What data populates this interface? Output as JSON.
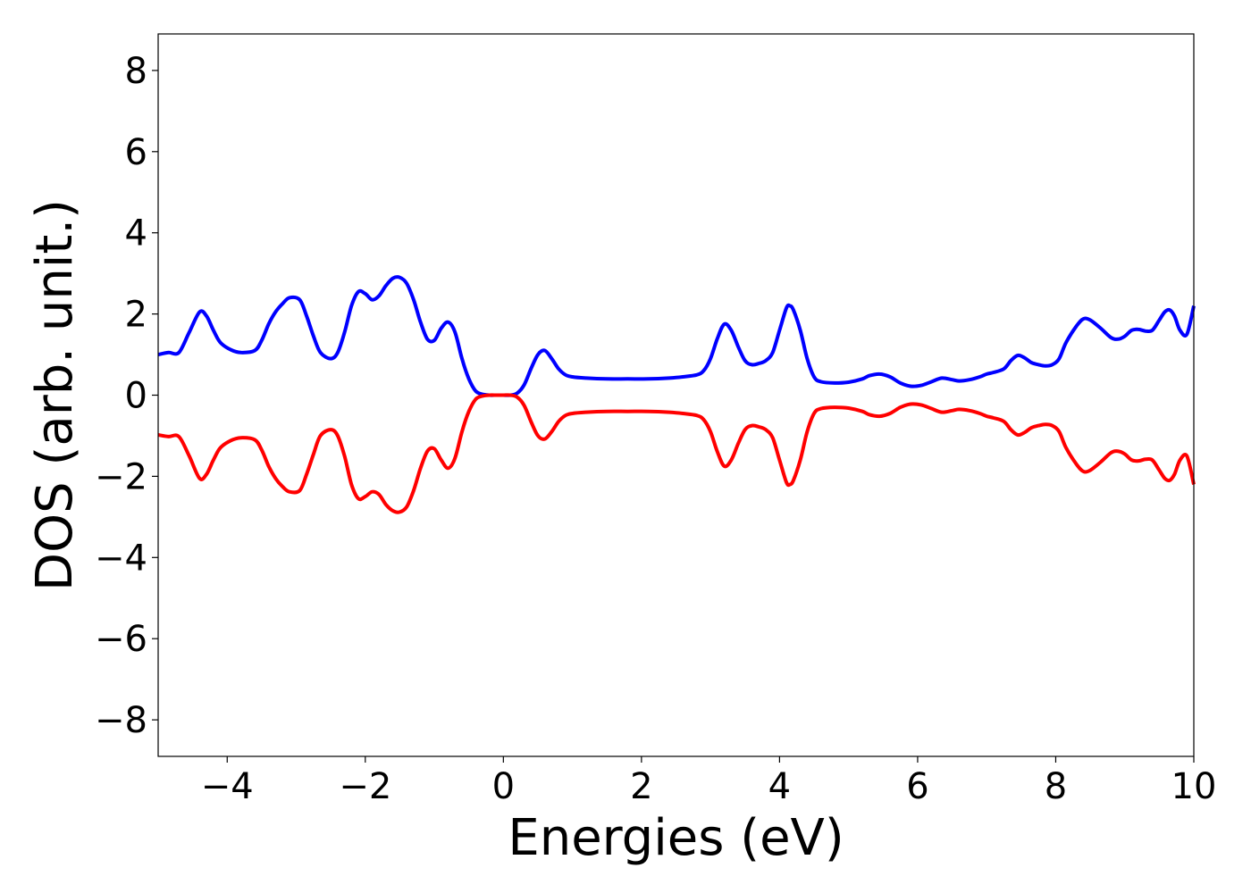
{
  "chart_data": {
    "type": "line",
    "title": "",
    "xlabel": "Energies (eV)",
    "ylabel": "DOS (arb. unit.)",
    "xlim": [
      -5,
      10
    ],
    "ylim": [
      -8.9,
      8.9
    ],
    "xticks": [
      -4,
      -2,
      0,
      2,
      4,
      6,
      8,
      10
    ],
    "xtick_labels": [
      "−4",
      "−2",
      "0",
      "2",
      "4",
      "6",
      "8",
      "10"
    ],
    "yticks": [
      8,
      6,
      4,
      2,
      0,
      -2,
      -4,
      -6,
      -8
    ],
    "ytick_labels": [
      "8",
      "6",
      "4",
      "2",
      "0",
      "−2",
      "−4",
      "−6",
      "−8"
    ],
    "grid": false,
    "series": [
      {
        "color": "#0000ff",
        "x": [
          -5.0,
          -4.85,
          -4.7,
          -4.55,
          -4.4,
          -4.3,
          -4.2,
          -4.1,
          -3.95,
          -3.8,
          -3.6,
          -3.5,
          -3.4,
          -3.3,
          -3.2,
          -3.1,
          -2.95,
          -2.85,
          -2.75,
          -2.65,
          -2.5,
          -2.4,
          -2.3,
          -2.2,
          -2.1,
          -2.0,
          -1.9,
          -1.8,
          -1.7,
          -1.6,
          -1.5,
          -1.4,
          -1.3,
          -1.2,
          -1.1,
          -1.0,
          -0.9,
          -0.8,
          -0.7,
          -0.6,
          -0.5,
          -0.4,
          -0.3,
          -0.2,
          -0.1,
          0.0,
          0.1,
          0.2,
          0.3,
          0.4,
          0.5,
          0.6,
          0.7,
          0.8,
          0.9,
          1.0,
          1.2,
          1.5,
          1.8,
          2.1,
          2.4,
          2.6,
          2.8,
          2.9,
          3.0,
          3.1,
          3.2,
          3.3,
          3.4,
          3.5,
          3.6,
          3.7,
          3.8,
          3.9,
          4.0,
          4.1,
          4.15,
          4.2,
          4.3,
          4.4,
          4.5,
          4.6,
          4.8,
          5.0,
          5.2,
          5.3,
          5.45,
          5.6,
          5.75,
          5.9,
          6.05,
          6.2,
          6.35,
          6.5,
          6.6,
          6.75,
          6.9,
          7.0,
          7.1,
          7.25,
          7.35,
          7.45,
          7.55,
          7.65,
          7.75,
          7.85,
          7.95,
          8.05,
          8.15,
          8.3,
          8.4,
          8.5,
          8.65,
          8.8,
          8.9,
          9.0,
          9.1,
          9.2,
          9.3,
          9.4,
          9.5,
          9.58,
          9.65,
          9.72,
          9.8,
          9.9,
          10.0
        ],
        "y": [
          1.0,
          1.05,
          1.05,
          1.55,
          2.05,
          1.95,
          1.6,
          1.3,
          1.12,
          1.05,
          1.1,
          1.35,
          1.75,
          2.05,
          2.25,
          2.4,
          2.35,
          1.95,
          1.45,
          1.05,
          0.9,
          1.05,
          1.55,
          2.2,
          2.55,
          2.5,
          2.35,
          2.45,
          2.7,
          2.88,
          2.9,
          2.75,
          2.35,
          1.8,
          1.38,
          1.35,
          1.65,
          1.8,
          1.55,
          0.9,
          0.4,
          0.1,
          0.02,
          0.0,
          0.0,
          0.0,
          0.0,
          0.05,
          0.25,
          0.65,
          1.0,
          1.1,
          0.9,
          0.65,
          0.5,
          0.45,
          0.42,
          0.4,
          0.4,
          0.4,
          0.42,
          0.45,
          0.5,
          0.6,
          0.9,
          1.4,
          1.75,
          1.6,
          1.2,
          0.85,
          0.75,
          0.78,
          0.85,
          1.05,
          1.6,
          2.15,
          2.2,
          2.1,
          1.6,
          0.9,
          0.45,
          0.33,
          0.3,
          0.32,
          0.4,
          0.48,
          0.52,
          0.45,
          0.3,
          0.22,
          0.24,
          0.33,
          0.42,
          0.38,
          0.35,
          0.38,
          0.45,
          0.52,
          0.56,
          0.65,
          0.85,
          0.98,
          0.92,
          0.8,
          0.75,
          0.72,
          0.75,
          0.9,
          1.3,
          1.7,
          1.88,
          1.85,
          1.65,
          1.42,
          1.38,
          1.45,
          1.6,
          1.62,
          1.58,
          1.6,
          1.85,
          2.05,
          2.1,
          1.95,
          1.6,
          1.5,
          2.2
        ]
      },
      {
        "color": "#ff0000",
        "x": [
          -5.0,
          -4.85,
          -4.7,
          -4.55,
          -4.4,
          -4.3,
          -4.2,
          -4.1,
          -3.95,
          -3.8,
          -3.6,
          -3.5,
          -3.4,
          -3.3,
          -3.2,
          -3.1,
          -2.95,
          -2.85,
          -2.75,
          -2.65,
          -2.5,
          -2.4,
          -2.3,
          -2.2,
          -2.1,
          -2.0,
          -1.9,
          -1.8,
          -1.7,
          -1.6,
          -1.5,
          -1.4,
          -1.3,
          -1.2,
          -1.1,
          -1.0,
          -0.9,
          -0.8,
          -0.7,
          -0.6,
          -0.5,
          -0.4,
          -0.3,
          -0.2,
          -0.1,
          0.0,
          0.1,
          0.2,
          0.3,
          0.4,
          0.5,
          0.6,
          0.7,
          0.8,
          0.9,
          1.0,
          1.2,
          1.5,
          1.8,
          2.1,
          2.4,
          2.6,
          2.8,
          2.9,
          3.0,
          3.1,
          3.2,
          3.3,
          3.4,
          3.5,
          3.6,
          3.7,
          3.8,
          3.9,
          4.0,
          4.1,
          4.15,
          4.2,
          4.3,
          4.4,
          4.5,
          4.6,
          4.8,
          5.0,
          5.2,
          5.3,
          5.45,
          5.6,
          5.75,
          5.9,
          6.05,
          6.2,
          6.35,
          6.5,
          6.6,
          6.75,
          6.9,
          7.0,
          7.1,
          7.25,
          7.35,
          7.45,
          7.55,
          7.65,
          7.75,
          7.85,
          7.95,
          8.05,
          8.15,
          8.3,
          8.4,
          8.5,
          8.65,
          8.8,
          8.9,
          9.0,
          9.1,
          9.2,
          9.3,
          9.4,
          9.5,
          9.58,
          9.65,
          9.72,
          9.8,
          9.9,
          10.0
        ],
        "y": [
          -0.98,
          -1.02,
          -1.02,
          -1.5,
          -2.05,
          -1.95,
          -1.6,
          -1.3,
          -1.12,
          -1.05,
          -1.1,
          -1.35,
          -1.75,
          -2.05,
          -2.25,
          -2.38,
          -2.35,
          -1.95,
          -1.45,
          -1.0,
          -0.85,
          -1.0,
          -1.5,
          -2.2,
          -2.55,
          -2.5,
          -2.38,
          -2.45,
          -2.7,
          -2.85,
          -2.88,
          -2.75,
          -2.35,
          -1.8,
          -1.38,
          -1.32,
          -1.6,
          -1.8,
          -1.55,
          -0.9,
          -0.4,
          -0.1,
          -0.02,
          0.0,
          0.0,
          0.0,
          0.0,
          -0.05,
          -0.25,
          -0.65,
          -1.0,
          -1.08,
          -0.9,
          -0.65,
          -0.5,
          -0.45,
          -0.42,
          -0.4,
          -0.4,
          -0.4,
          -0.42,
          -0.45,
          -0.5,
          -0.6,
          -0.9,
          -1.4,
          -1.75,
          -1.6,
          -1.2,
          -0.85,
          -0.75,
          -0.78,
          -0.85,
          -1.05,
          -1.6,
          -2.15,
          -2.2,
          -2.1,
          -1.6,
          -0.9,
          -0.45,
          -0.33,
          -0.3,
          -0.32,
          -0.4,
          -0.48,
          -0.52,
          -0.45,
          -0.3,
          -0.22,
          -0.24,
          -0.33,
          -0.42,
          -0.38,
          -0.35,
          -0.38,
          -0.45,
          -0.52,
          -0.56,
          -0.65,
          -0.85,
          -0.98,
          -0.92,
          -0.8,
          -0.75,
          -0.72,
          -0.75,
          -0.9,
          -1.3,
          -1.7,
          -1.88,
          -1.85,
          -1.65,
          -1.42,
          -1.38,
          -1.45,
          -1.6,
          -1.62,
          -1.58,
          -1.6,
          -1.85,
          -2.05,
          -2.1,
          -1.95,
          -1.6,
          -1.5,
          -2.2
        ]
      }
    ]
  }
}
